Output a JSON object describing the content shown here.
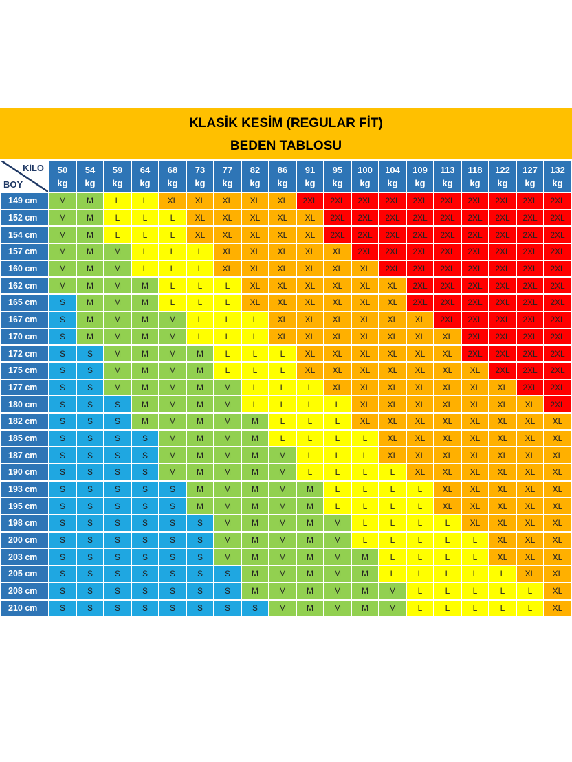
{
  "title": "KLASİK KESİM (REGULAR FİT)",
  "subtitle": "BEDEN TABLOSU",
  "corner": {
    "col_label": "KİLO",
    "row_label": "BOY"
  },
  "unit": "kg",
  "colors": {
    "title_bg": "#ffc000",
    "header_bg": "#2e75b6",
    "S": "#1fa7e1",
    "M": "#92d050",
    "L": "#ffff00",
    "XL": "#ffb000",
    "2XL": "#ff0000"
  },
  "chart_data": {
    "type": "table",
    "weights": [
      "50",
      "54",
      "59",
      "64",
      "68",
      "73",
      "77",
      "82",
      "86",
      "91",
      "95",
      "100",
      "104",
      "109",
      "113",
      "118",
      "122",
      "127",
      "132"
    ],
    "rows": [
      {
        "height": "149 cm",
        "sizes": [
          "M",
          "M",
          "L",
          "L",
          "XL",
          "XL",
          "XL",
          "XL",
          "XL",
          "2XL",
          "2XL",
          "2XL",
          "2XL",
          "2XL",
          "2XL",
          "2XL",
          "2XL",
          "2XL",
          "2XL"
        ]
      },
      {
        "height": "152 cm",
        "sizes": [
          "M",
          "M",
          "L",
          "L",
          "L",
          "XL",
          "XL",
          "XL",
          "XL",
          "XL",
          "2XL",
          "2XL",
          "2XL",
          "2XL",
          "2XL",
          "2XL",
          "2XL",
          "2XL",
          "2XL"
        ]
      },
      {
        "height": "154 cm",
        "sizes": [
          "M",
          "M",
          "L",
          "L",
          "L",
          "XL",
          "XL",
          "XL",
          "XL",
          "XL",
          "2XL",
          "2XL",
          "2XL",
          "2XL",
          "2XL",
          "2XL",
          "2XL",
          "2XL",
          "2XL"
        ]
      },
      {
        "height": "157 cm",
        "sizes": [
          "M",
          "M",
          "M",
          "L",
          "L",
          "L",
          "XL",
          "XL",
          "XL",
          "XL",
          "XL",
          "2XL",
          "2XL",
          "2XL",
          "2XL",
          "2XL",
          "2XL",
          "2XL",
          "2XL"
        ]
      },
      {
        "height": "160 cm",
        "sizes": [
          "M",
          "M",
          "M",
          "L",
          "L",
          "L",
          "XL",
          "XL",
          "XL",
          "XL",
          "XL",
          "XL",
          "2XL",
          "2XL",
          "2XL",
          "2XL",
          "2XL",
          "2XL",
          "2XL"
        ]
      },
      {
        "height": "162 cm",
        "sizes": [
          "M",
          "M",
          "M",
          "M",
          "L",
          "L",
          "L",
          "XL",
          "XL",
          "XL",
          "XL",
          "XL",
          "XL",
          "2XL",
          "2XL",
          "2XL",
          "2XL",
          "2XL",
          "2XL"
        ]
      },
      {
        "height": "165 cm",
        "sizes": [
          "S",
          "M",
          "M",
          "M",
          "L",
          "L",
          "L",
          "XL",
          "XL",
          "XL",
          "XL",
          "XL",
          "XL",
          "2XL",
          "2XL",
          "2XL",
          "2XL",
          "2XL",
          "2XL"
        ]
      },
      {
        "height": "167 cm",
        "sizes": [
          "S",
          "M",
          "M",
          "M",
          "M",
          "L",
          "L",
          "L",
          "XL",
          "XL",
          "XL",
          "XL",
          "XL",
          "XL",
          "2XL",
          "2XL",
          "2XL",
          "2XL",
          "2XL"
        ]
      },
      {
        "height": "170 cm",
        "sizes": [
          "S",
          "M",
          "M",
          "M",
          "M",
          "L",
          "L",
          "L",
          "XL",
          "XL",
          "XL",
          "XL",
          "XL",
          "XL",
          "XL",
          "2XL",
          "2XL",
          "2XL",
          "2XL"
        ]
      },
      {
        "height": "172 cm",
        "sizes": [
          "S",
          "S",
          "M",
          "M",
          "M",
          "M",
          "L",
          "L",
          "L",
          "XL",
          "XL",
          "XL",
          "XL",
          "XL",
          "XL",
          "2XL",
          "2XL",
          "2XL",
          "2XL"
        ]
      },
      {
        "height": "175 cm",
        "sizes": [
          "S",
          "S",
          "M",
          "M",
          "M",
          "M",
          "L",
          "L",
          "L",
          "XL",
          "XL",
          "XL",
          "XL",
          "XL",
          "XL",
          "XL",
          "2XL",
          "2XL",
          "2XL"
        ]
      },
      {
        "height": "177 cm",
        "sizes": [
          "S",
          "S",
          "M",
          "M",
          "M",
          "M",
          "M",
          "L",
          "L",
          "L",
          "XL",
          "XL",
          "XL",
          "XL",
          "XL",
          "XL",
          "XL",
          "2XL",
          "2XL"
        ]
      },
      {
        "height": "180 cm",
        "sizes": [
          "S",
          "S",
          "S",
          "M",
          "M",
          "M",
          "M",
          "L",
          "L",
          "L",
          "L",
          "XL",
          "XL",
          "XL",
          "XL",
          "XL",
          "XL",
          "XL",
          "2XL"
        ]
      },
      {
        "height": "182 cm",
        "sizes": [
          "S",
          "S",
          "S",
          "M",
          "M",
          "M",
          "M",
          "M",
          "L",
          "L",
          "L",
          "XL",
          "XL",
          "XL",
          "XL",
          "XL",
          "XL",
          "XL",
          "XL"
        ]
      },
      {
        "height": "185 cm",
        "sizes": [
          "S",
          "S",
          "S",
          "S",
          "M",
          "M",
          "M",
          "M",
          "L",
          "L",
          "L",
          "L",
          "XL",
          "XL",
          "XL",
          "XL",
          "XL",
          "XL",
          "XL"
        ]
      },
      {
        "height": "187 cm",
        "sizes": [
          "S",
          "S",
          "S",
          "S",
          "M",
          "M",
          "M",
          "M",
          "M",
          "L",
          "L",
          "L",
          "XL",
          "XL",
          "XL",
          "XL",
          "XL",
          "XL",
          "XL"
        ]
      },
      {
        "height": "190 cm",
        "sizes": [
          "S",
          "S",
          "S",
          "S",
          "M",
          "M",
          "M",
          "M",
          "M",
          "L",
          "L",
          "L",
          "L",
          "XL",
          "XL",
          "XL",
          "XL",
          "XL",
          "XL"
        ]
      },
      {
        "height": "193 cm",
        "sizes": [
          "S",
          "S",
          "S",
          "S",
          "S",
          "M",
          "M",
          "M",
          "M",
          "M",
          "L",
          "L",
          "L",
          "L",
          "XL",
          "XL",
          "XL",
          "XL",
          "XL"
        ]
      },
      {
        "height": "195 cm",
        "sizes": [
          "S",
          "S",
          "S",
          "S",
          "S",
          "M",
          "M",
          "M",
          "M",
          "M",
          "L",
          "L",
          "L",
          "L",
          "XL",
          "XL",
          "XL",
          "XL",
          "XL"
        ]
      },
      {
        "height": "198 cm",
        "sizes": [
          "S",
          "S",
          "S",
          "S",
          "S",
          "S",
          "M",
          "M",
          "M",
          "M",
          "M",
          "L",
          "L",
          "L",
          "L",
          "XL",
          "XL",
          "XL",
          "XL"
        ]
      },
      {
        "height": "200 cm",
        "sizes": [
          "S",
          "S",
          "S",
          "S",
          "S",
          "S",
          "M",
          "M",
          "M",
          "M",
          "M",
          "L",
          "L",
          "L",
          "L",
          "L",
          "XL",
          "XL",
          "XL"
        ]
      },
      {
        "height": "203 cm",
        "sizes": [
          "S",
          "S",
          "S",
          "S",
          "S",
          "S",
          "M",
          "M",
          "M",
          "M",
          "M",
          "M",
          "L",
          "L",
          "L",
          "L",
          "XL",
          "XL",
          "XL"
        ]
      },
      {
        "height": "205 cm",
        "sizes": [
          "S",
          "S",
          "S",
          "S",
          "S",
          "S",
          "S",
          "M",
          "M",
          "M",
          "M",
          "M",
          "L",
          "L",
          "L",
          "L",
          "L",
          "XL",
          "XL"
        ]
      },
      {
        "height": "208 cm",
        "sizes": [
          "S",
          "S",
          "S",
          "S",
          "S",
          "S",
          "S",
          "M",
          "M",
          "M",
          "M",
          "M",
          "M",
          "L",
          "L",
          "L",
          "L",
          "L",
          "XL"
        ]
      },
      {
        "height": "210 cm",
        "sizes": [
          "S",
          "S",
          "S",
          "S",
          "S",
          "S",
          "S",
          "S",
          "M",
          "M",
          "M",
          "M",
          "M",
          "L",
          "L",
          "L",
          "L",
          "L",
          "XL"
        ]
      }
    ]
  }
}
